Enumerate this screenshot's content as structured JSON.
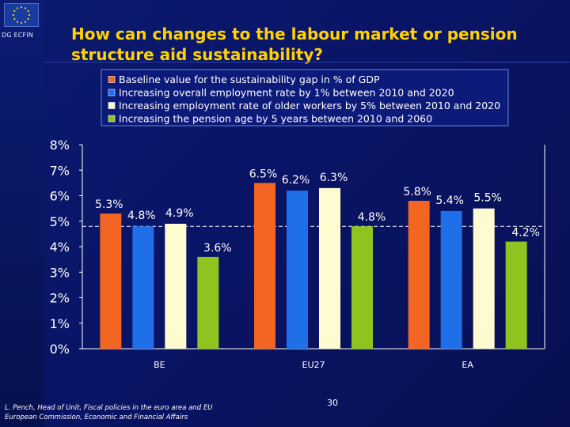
{
  "header": {
    "org_label": "DG ECFIN",
    "logo_name": "eu-flag-logo",
    "title": "How can changes to the labour market or pension structure aid sustainability?"
  },
  "colors": {
    "background": "#0a1466",
    "title": "#ffd200",
    "legend_bg": "#0c1a7a",
    "axis": "#ffffff"
  },
  "chart_data": {
    "type": "bar",
    "categories": [
      "BE",
      "EU27",
      "EA"
    ],
    "series": [
      {
        "name": "Baseline value for the sustainability gap in % of GDP",
        "color": "#f26522",
        "values": [
          5.3,
          6.5,
          5.8
        ]
      },
      {
        "name": "Increasing overall employment rate by 1% between 2010 and 2020",
        "color": "#1f6fe8",
        "values": [
          4.8,
          6.2,
          5.4
        ]
      },
      {
        "name": "Increasing employment rate of older workers by 5% between 2010 and 2020",
        "color": "#fffbd0",
        "values": [
          4.9,
          6.3,
          5.5
        ]
      },
      {
        "name": "Increasing the pension age by 5 years between 2010 and  2060",
        "color": "#8fc31f",
        "values": [
          3.6,
          4.8,
          4.2
        ]
      }
    ],
    "value_labels": [
      [
        "5.3%",
        "4.8%",
        "4.9%",
        "3.6%"
      ],
      [
        "6.5%",
        "6.2%",
        "6.3%",
        "4.8%"
      ],
      [
        "5.8%",
        "5.4%",
        "5.5%",
        "4.2%"
      ]
    ],
    "y_ticks": [
      "0%",
      "1%",
      "2%",
      "3%",
      "4%",
      "5%",
      "6%",
      "7%",
      "8%"
    ],
    "ylim": [
      0,
      8
    ],
    "reference_line_value": 4.8,
    "legend_placement": "top"
  },
  "footer": {
    "author_line1": "L. Pench, Head of Unit, Fiscal policies in the euro area and EU",
    "author_line2": "European Commission, Economic and Financial Affairs",
    "page_number": "30"
  }
}
